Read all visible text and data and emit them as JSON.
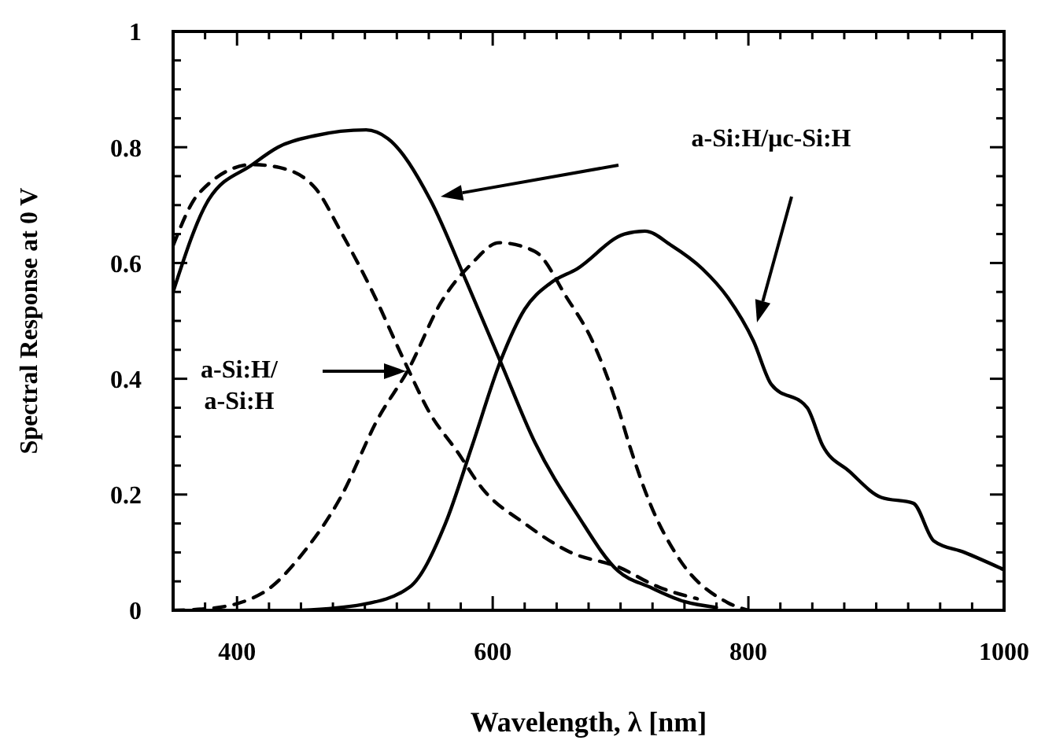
{
  "chart_data": {
    "type": "line",
    "xlabel": "Wavelength, λ [nm]",
    "ylabel": "Spectral Response at 0 V",
    "xlim": [
      350,
      1000
    ],
    "xticks": [
      400,
      600,
      800,
      1000
    ],
    "ylim": [
      0,
      1
    ],
    "yticks": [
      0,
      0.2,
      0.4,
      0.6,
      0.8,
      1
    ],
    "marker": "none",
    "annotations": [
      "a-Si:H/μc-Si:H",
      "a-Si:H/\na-Si:H"
    ],
    "series": [
      {
        "color": "#000000",
        "line_style": "solid",
        "x": [
          350,
          378,
          412,
          432,
          461,
          501,
          518,
          551,
          580,
          606,
          633,
          666,
          698,
          723,
          750,
          775
        ],
        "values": [
          0.55,
          0.71,
          0.77,
          0.8,
          0.82,
          0.83,
          0.815,
          0.71,
          0.565,
          0.43,
          0.29,
          0.166,
          0.068,
          0.04,
          0.015,
          0.005
        ]
      },
      {
        "color": "#000000",
        "line_style": "dashed",
        "x": [
          350,
          370,
          412,
          433,
          461,
          481,
          506,
          531,
          551,
          572,
          592,
          625,
          661,
          698,
          730,
          760
        ],
        "values": [
          0.63,
          0.72,
          0.77,
          0.765,
          0.73,
          0.655,
          0.55,
          0.43,
          0.34,
          0.275,
          0.21,
          0.15,
          0.1,
          0.075,
          0.04,
          0.02
        ]
      },
      {
        "color": "#000000",
        "line_style": "solid",
        "x": [
          450,
          498,
          535,
          563,
          584,
          606,
          625,
          645,
          666,
          703,
          719,
          740,
          764,
          784,
          804,
          818,
          846,
          858,
          879,
          904,
          929,
          945,
          969,
          1000
        ],
        "values": [
          0,
          0.01,
          0.04,
          0.15,
          0.285,
          0.43,
          0.52,
          0.565,
          0.59,
          0.65,
          0.655,
          0.63,
          0.59,
          0.54,
          0.465,
          0.39,
          0.35,
          0.285,
          0.24,
          0.195,
          0.185,
          0.12,
          0.1,
          0.07
        ]
      },
      {
        "color": "#000000",
        "line_style": "dashed",
        "x": [
          350,
          378,
          420,
          452,
          481,
          510,
          535,
          559,
          584,
          605,
          633,
          658,
          678,
          698,
          707,
          723,
          744,
          784,
          800
        ],
        "values": [
          0,
          0.003,
          0.03,
          0.1,
          0.195,
          0.33,
          0.42,
          0.53,
          0.6,
          0.635,
          0.62,
          0.54,
          0.465,
          0.35,
          0.285,
          0.185,
          0.095,
          0.013,
          0
        ]
      }
    ]
  }
}
